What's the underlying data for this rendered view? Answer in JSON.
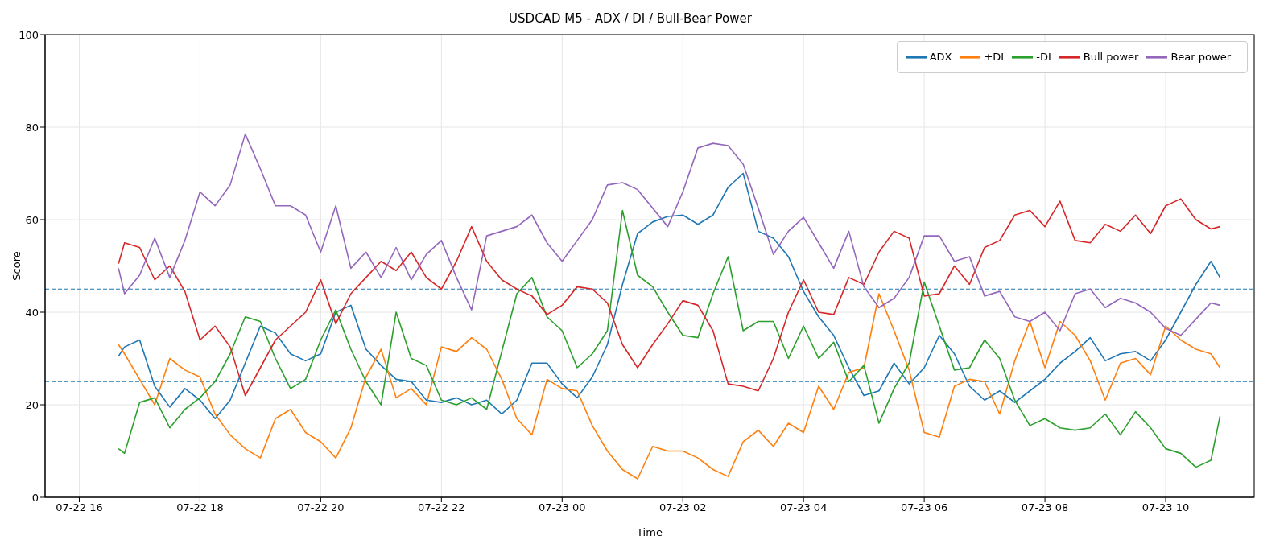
{
  "chart_data": {
    "type": "line",
    "title": "USDCAD M5 - ADX / DI / Bull-Bear Power",
    "xlabel": "Time",
    "ylabel": "Score",
    "x": [
      "--07-22T16:39",
      "--07-22T16:45",
      "--07-22T17:00",
      "--07-22T17:15",
      "--07-22T17:30",
      "--07-22T17:45",
      "--07-22T18:00",
      "--07-22T18:15",
      "--07-22T18:30",
      "--07-22T18:45",
      "--07-22T19:00",
      "--07-22T19:15",
      "--07-22T19:30",
      "--07-22T19:45",
      "--07-22T20:00",
      "--07-22T20:15",
      "--07-22T20:30",
      "--07-22T20:45",
      "--07-22T21:00",
      "--07-22T21:15",
      "--07-22T21:30",
      "--07-22T21:45",
      "--07-22T22:00",
      "--07-22T22:15",
      "--07-22T22:30",
      "--07-22T22:45",
      "--07-22T23:00",
      "--07-22T23:15",
      "--07-22T23:30",
      "--07-22T23:45",
      "--07-23T00:00",
      "--07-23T00:15",
      "--07-23T00:30",
      "--07-23T00:45",
      "--07-23T01:00",
      "--07-23T01:15",
      "--07-23T01:30",
      "--07-23T01:45",
      "--07-23T02:00",
      "--07-23T02:15",
      "--07-23T02:30",
      "--07-23T02:45",
      "--07-23T03:00",
      "--07-23T03:15",
      "--07-23T03:30",
      "--07-23T03:45",
      "--07-23T04:00",
      "--07-23T04:15",
      "--07-23T04:30",
      "--07-23T04:45",
      "--07-23T05:00",
      "--07-23T05:15",
      "--07-23T05:30",
      "--07-23T05:45",
      "--07-23T06:00",
      "--07-23T06:15",
      "--07-23T06:30",
      "--07-23T06:45",
      "--07-23T07:00",
      "--07-23T07:15",
      "--07-23T07:30",
      "--07-23T07:45",
      "--07-23T08:00",
      "--07-23T08:15",
      "--07-23T08:30",
      "--07-23T08:45",
      "--07-23T09:00",
      "--07-23T09:15",
      "--07-23T09:30",
      "--07-23T09:45",
      "--07-23T10:00",
      "--07-23T10:15",
      "--07-23T10:30",
      "--07-23T10:45",
      "--07-23T10:54"
    ],
    "series": [
      {
        "name": "ADX",
        "color": "#1f77b4",
        "values": [
          30.5,
          32.5,
          34,
          24,
          19.5,
          23.5,
          21,
          17,
          21,
          29,
          37,
          35.5,
          31,
          29.5,
          31,
          40,
          41.5,
          32,
          28.5,
          25.5,
          25,
          21,
          20.5,
          21.5,
          20,
          21,
          18,
          21,
          29,
          29,
          24.5,
          21.5,
          26,
          33,
          46,
          57,
          59.5,
          60.7,
          61,
          59,
          61,
          67,
          70,
          57.5,
          56,
          52,
          44.5,
          39,
          35,
          28,
          22,
          23,
          29,
          24.5,
          28,
          35,
          31,
          24,
          21,
          23,
          20.5,
          23,
          25.5,
          29,
          31.5,
          34.5,
          29.5,
          31,
          31.5,
          29.5,
          34,
          40,
          46,
          51,
          47.5
        ]
      },
      {
        "name": "+DI",
        "color": "#ff7f0e",
        "values": [
          33,
          31,
          25.5,
          20,
          30,
          27.5,
          26,
          18,
          13.5,
          10.5,
          8.5,
          17,
          19,
          14,
          12,
          8.5,
          15,
          26,
          32,
          21.5,
          23.5,
          20,
          32.5,
          31.5,
          34.5,
          32,
          25.5,
          17,
          13.5,
          25.5,
          23.5,
          23,
          15.5,
          10,
          6,
          4,
          11,
          10,
          10,
          8.5,
          6,
          4.5,
          12,
          14.5,
          11,
          16,
          14,
          24,
          19,
          27,
          28,
          44,
          36,
          27.5,
          14,
          13,
          24,
          25.5,
          25,
          18,
          29.5,
          38,
          28,
          38,
          35,
          29.5,
          21,
          29,
          30,
          26.5,
          37,
          34,
          32,
          31,
          28
        ]
      },
      {
        "name": "-DI",
        "color": "#2ca02c",
        "values": [
          10.5,
          9.5,
          20.5,
          21.5,
          15,
          19,
          21.5,
          25,
          31,
          39,
          38,
          30,
          23.5,
          25.5,
          34,
          40.5,
          32,
          25,
          20,
          40,
          30,
          28.5,
          21,
          20,
          21.5,
          19,
          31.5,
          44,
          47.5,
          39,
          36,
          28,
          31,
          36,
          62,
          48,
          45.5,
          40,
          35,
          34.5,
          44,
          52,
          36,
          38,
          38,
          30,
          37,
          30,
          33.5,
          25,
          28.5,
          16,
          23.5,
          29,
          46.5,
          37,
          27.5,
          28,
          34,
          30,
          21,
          15.5,
          17,
          15,
          14.5,
          15,
          18,
          13.5,
          18.5,
          15,
          10.5,
          9.5,
          6.5,
          8,
          17.5
        ]
      },
      {
        "name": "Bull power",
        "color": "#d62728",
        "values": [
          50.5,
          55,
          54,
          47,
          50,
          44.5,
          34,
          37,
          32.5,
          22,
          28,
          34,
          37,
          40,
          47,
          37.5,
          44,
          47.5,
          51,
          49,
          53,
          47.5,
          45,
          51,
          58.5,
          51,
          47,
          45,
          43.5,
          39.5,
          41.5,
          45.5,
          45,
          42,
          33,
          28,
          33,
          37.5,
          42.5,
          41.5,
          36,
          24.5,
          24,
          23,
          30,
          40,
          47,
          40,
          39.5,
          47.5,
          46,
          53,
          57.5,
          56,
          43.5,
          44,
          50,
          46,
          54,
          55.5,
          61,
          62,
          58.5,
          64,
          55.5,
          55,
          59,
          57.5,
          61,
          57,
          63,
          64.5,
          60,
          58,
          58.5
        ]
      },
      {
        "name": "Bear power",
        "color": "#9467bd",
        "values": [
          49.5,
          44,
          48,
          56,
          47.5,
          55.5,
          66,
          63,
          67.5,
          78.5,
          71,
          63,
          63,
          61,
          53,
          63,
          49.5,
          53,
          47.5,
          54,
          47,
          52.5,
          55.5,
          47.5,
          40.5,
          56.5,
          57.5,
          58.5,
          61,
          55,
          51,
          55.5,
          60,
          67.5,
          68,
          66.5,
          62.5,
          58.5,
          66,
          75.5,
          76.5,
          76,
          72,
          62.5,
          52.5,
          57.5,
          60.5,
          55,
          49.5,
          57.5,
          45.5,
          41,
          43,
          47.5,
          56.5,
          56.5,
          51,
          52,
          43.5,
          44.5,
          39,
          38,
          40,
          36,
          44,
          45,
          41,
          43,
          42,
          40,
          36.5,
          35,
          38.5,
          42,
          41.5
        ]
      }
    ],
    "xlim": [
      "--07-22T15:26",
      "--07-23T11:28"
    ],
    "xticks": [
      {
        "value": "--07-22T16:00",
        "label": "07-22 16"
      },
      {
        "value": "--07-22T18:00",
        "label": "07-22 18"
      },
      {
        "value": "--07-22T20:00",
        "label": "07-22 20"
      },
      {
        "value": "--07-22T22:00",
        "label": "07-22 22"
      },
      {
        "value": "--07-23T00:00",
        "label": "07-23 00"
      },
      {
        "value": "--07-23T02:00",
        "label": "07-23 02"
      },
      {
        "value": "--07-23T04:00",
        "label": "07-23 04"
      },
      {
        "value": "--07-23T06:00",
        "label": "07-23 06"
      },
      {
        "value": "--07-23T08:00",
        "label": "07-23 08"
      },
      {
        "value": "--07-23T10:00",
        "label": "07-23 10"
      }
    ],
    "ylim": [
      0,
      100
    ],
    "yticks": [
      0,
      20,
      40,
      60,
      80,
      100
    ],
    "ref_lines": [
      {
        "axis": "y",
        "value": 45,
        "color": "#1f77b4",
        "line_style": "dashed"
      },
      {
        "axis": "y",
        "value": 25,
        "color": "#1f77b4",
        "line_style": "dashed"
      }
    ],
    "grid": true,
    "legend": "top right"
  }
}
